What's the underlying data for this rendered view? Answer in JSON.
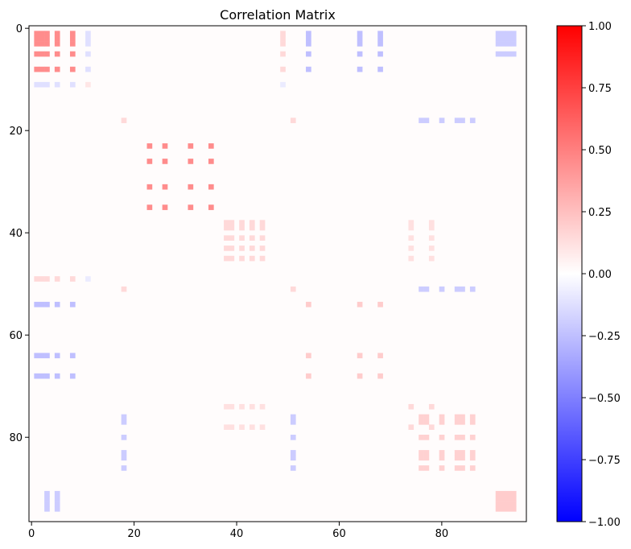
{
  "chart_data": {
    "type": "heatmap",
    "title": "Correlation Matrix",
    "xlabel": "",
    "ylabel": "",
    "size": 97,
    "xlim": [
      -0.5,
      96.5
    ],
    "ylim": [
      96.5,
      -0.5
    ],
    "x_ticks": [
      0,
      20,
      40,
      60,
      80
    ],
    "y_ticks": [
      0,
      20,
      40,
      60,
      80
    ],
    "colormap": "bwr",
    "colorbar": {
      "range": [
        -1.0,
        1.0
      ],
      "ticks": [
        -1.0,
        -0.75,
        -0.5,
        -0.25,
        0.0,
        0.25,
        0.5,
        0.75,
        1.0
      ],
      "tick_labels": [
        "−1.00",
        "−0.75",
        "−0.50",
        "−0.25",
        "0.00",
        "0.25",
        "0.50",
        "0.75",
        "1.00"
      ],
      "low_color": "#0000ff",
      "mid_color": "#ffffff",
      "high_color": "#ff0000"
    },
    "grid": false,
    "blocks": [
      {
        "rows": [
          1,
          2,
          3,
          5,
          8
        ],
        "cols": [
          1,
          2,
          3,
          5,
          8
        ],
        "value": 0.45
      },
      {
        "rows": [
          1,
          2,
          3,
          5,
          8
        ],
        "cols": [
          11
        ],
        "value": -0.12
      },
      {
        "rows": [
          11
        ],
        "cols": [
          1,
          2,
          3,
          5,
          8
        ],
        "value": -0.12
      },
      {
        "rows": [
          11
        ],
        "cols": [
          11
        ],
        "value": 0.1
      },
      {
        "rows": [
          1,
          2,
          3,
          5,
          8
        ],
        "cols": [
          49
        ],
        "value": 0.15
      },
      {
        "rows": [
          49
        ],
        "cols": [
          1,
          2,
          3,
          5,
          8
        ],
        "value": 0.15
      },
      {
        "rows": [
          11
        ],
        "cols": [
          49
        ],
        "value": -0.08
      },
      {
        "rows": [
          49
        ],
        "cols": [
          11
        ],
        "value": -0.08
      },
      {
        "rows": [
          1,
          2,
          3,
          5,
          8
        ],
        "cols": [
          54,
          64,
          68
        ],
        "value": -0.25
      },
      {
        "rows": [
          54,
          64,
          68
        ],
        "cols": [
          1,
          2,
          3,
          5,
          8
        ],
        "value": -0.25
      },
      {
        "rows": [
          1,
          2,
          3,
          5
        ],
        "cols": [
          91,
          92,
          93,
          94
        ],
        "value": -0.2
      },
      {
        "rows": [
          91,
          92,
          93,
          94
        ],
        "cols": [
          3,
          5
        ],
        "value": -0.2
      },
      {
        "rows": [
          18
        ],
        "cols": [
          18,
          51
        ],
        "value": 0.15
      },
      {
        "rows": [
          51
        ],
        "cols": [
          18,
          51
        ],
        "value": 0.15
      },
      {
        "rows": [
          18,
          51
        ],
        "cols": [
          76,
          77,
          80,
          83,
          84,
          86
        ],
        "value": -0.2
      },
      {
        "rows": [
          76,
          77,
          80,
          83,
          84,
          86
        ],
        "cols": [
          18,
          51
        ],
        "value": -0.2
      },
      {
        "rows": [
          23,
          26,
          31,
          35
        ],
        "cols": [
          23,
          26,
          31,
          35
        ],
        "value": 0.45
      },
      {
        "rows": [
          38,
          39,
          41,
          43,
          45
        ],
        "cols": [
          38,
          39,
          41,
          43,
          45
        ],
        "value": 0.15
      },
      {
        "rows": [
          38,
          39,
          41,
          43,
          45
        ],
        "cols": [
          74,
          78
        ],
        "value": 0.12
      },
      {
        "rows": [
          74,
          78
        ],
        "cols": [
          38,
          39,
          41,
          43,
          45
        ],
        "value": 0.12
      },
      {
        "rows": [
          54,
          64,
          68
        ],
        "cols": [
          54,
          64,
          68
        ],
        "value": 0.2
      },
      {
        "rows": [
          74,
          78
        ],
        "cols": [
          74,
          78
        ],
        "value": 0.15
      },
      {
        "rows": [
          76,
          77,
          80,
          83,
          84,
          86
        ],
        "cols": [
          76,
          77,
          80,
          83,
          84,
          86
        ],
        "value": 0.18
      },
      {
        "rows": [
          91,
          92,
          93,
          94
        ],
        "cols": [
          91,
          92,
          93,
          94
        ],
        "value": 0.2
      }
    ]
  }
}
